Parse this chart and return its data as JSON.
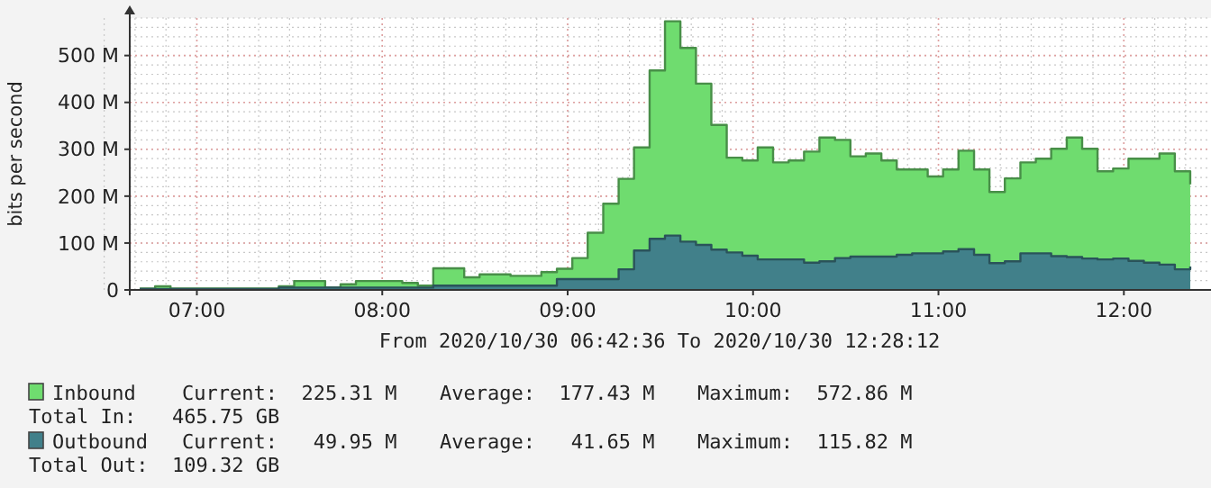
{
  "chart_data": {
    "type": "area",
    "ylabel": "bits per second",
    "x": [
      6.692,
      6.775,
      6.858,
      6.942,
      7.025,
      7.108,
      7.192,
      7.275,
      7.358,
      7.442,
      7.525,
      7.608,
      7.692,
      7.775,
      7.858,
      7.942,
      8.025,
      8.108,
      8.192,
      8.275,
      8.358,
      8.442,
      8.525,
      8.608,
      8.692,
      8.775,
      8.858,
      8.942,
      9.025,
      9.108,
      9.192,
      9.275,
      9.358,
      9.442,
      9.525,
      9.608,
      9.692,
      9.775,
      9.858,
      9.942,
      10.025,
      10.108,
      10.192,
      10.275,
      10.358,
      10.442,
      10.525,
      10.608,
      10.692,
      10.775,
      10.858,
      10.942,
      11.025,
      11.108,
      11.192,
      11.275,
      11.358,
      11.442,
      11.525,
      11.608,
      11.692,
      11.775,
      11.858,
      11.942,
      12.025,
      12.108,
      12.192,
      12.275,
      12.358
    ],
    "series": [
      {
        "name": "Inbound",
        "color": "#6fdc6f",
        "values": [
          3,
          8,
          3,
          3,
          3,
          3,
          3,
          3,
          3,
          8,
          19,
          19,
          5,
          12,
          19,
          19,
          19,
          15,
          9,
          46,
          46,
          27,
          33,
          33,
          30,
          30,
          38,
          45,
          68,
          122,
          184,
          237,
          304,
          468,
          573,
          516,
          440,
          352,
          282,
          276,
          304,
          272,
          276,
          295,
          325,
          320,
          285,
          291,
          276,
          257,
          257,
          242,
          257,
          297,
          257,
          209,
          238,
          272,
          280,
          301,
          325,
          301,
          253,
          259,
          280,
          280,
          291,
          253,
          225
        ]
      },
      {
        "name": "Outbound",
        "color": "#41808a",
        "values": [
          2,
          2,
          2,
          2,
          2,
          2,
          2,
          2,
          2,
          5,
          5,
          5,
          5,
          5,
          5,
          5,
          5,
          5,
          5,
          9,
          9,
          9,
          9,
          9,
          9,
          9,
          9,
          23,
          23,
          23,
          23,
          44,
          84,
          109,
          116,
          103,
          96,
          86,
          80,
          73,
          65,
          65,
          65,
          58,
          61,
          68,
          71,
          71,
          71,
          75,
          78,
          78,
          82,
          87,
          75,
          57,
          61,
          78,
          78,
          72,
          70,
          67,
          65,
          67,
          62,
          58,
          54,
          44,
          50
        ]
      }
    ],
    "xlim": [
      6.638,
      12.47
    ],
    "xticks": [
      {
        "value": 7,
        "label": "07:00"
      },
      {
        "value": 8,
        "label": "08:00"
      },
      {
        "value": 9,
        "label": "09:00"
      },
      {
        "value": 10,
        "label": "10:00"
      },
      {
        "value": 11,
        "label": "11:00"
      },
      {
        "value": 12,
        "label": "12:00"
      }
    ],
    "ylim": [
      0,
      580
    ],
    "yticks": [
      {
        "value": 0,
        "label": "0"
      },
      {
        "value": 100,
        "label": "100 M"
      },
      {
        "value": 200,
        "label": "200 M"
      },
      {
        "value": 300,
        "label": "300 M"
      },
      {
        "value": 400,
        "label": "400 M"
      },
      {
        "value": 500,
        "label": "500 M"
      }
    ],
    "grid": true,
    "legend": "bottom",
    "annotations": [
      "From 2020/10/30 06:42:36 To 2020/10/30 12:28:12",
      "Current:  225.31 M",
      "Average:  177.43 M",
      "Maximum:  572.86 M",
      "Total In:   465.75 GB",
      "Current:   49.95 M",
      "Average:   41.65 M",
      "Maximum:  115.82 M",
      "Total Out:  109.32 GB"
    ]
  }
}
